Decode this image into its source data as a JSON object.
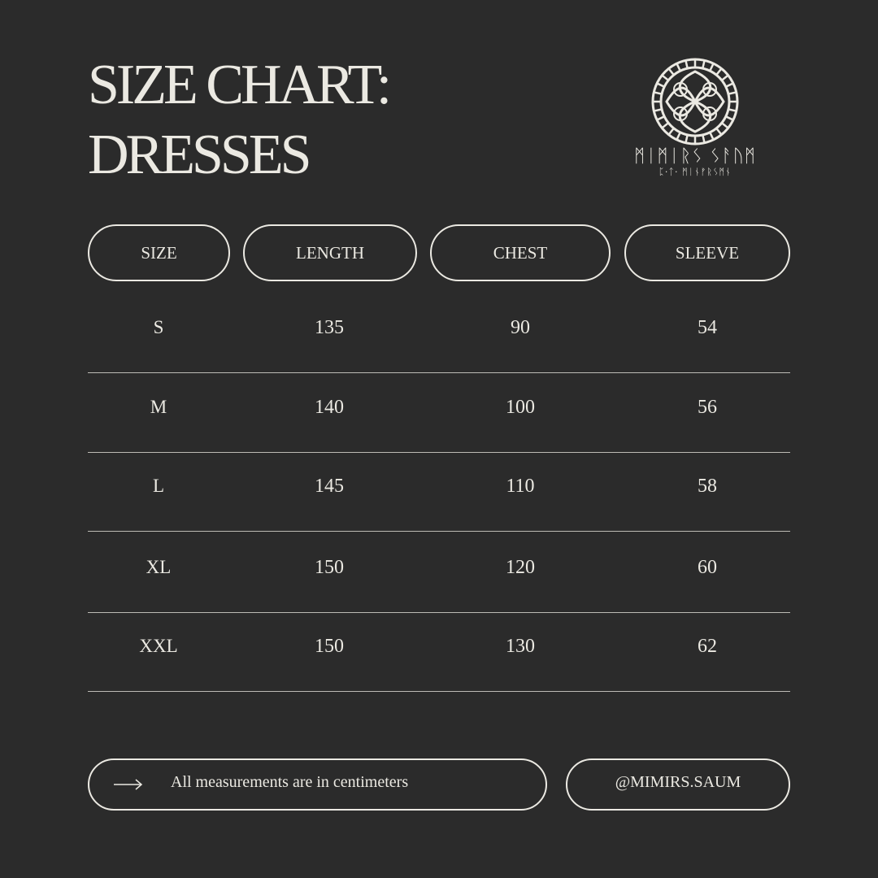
{
  "title": {
    "line1": "SIZE CHART:",
    "line2": "DRESSES"
  },
  "logo": {
    "name_runes": "ᛗᛁᛗᛁᚱᛊ ᛊᚨᚢᛗ",
    "sub_runes": "ᛈ·ᛏ· ᛗᛁᚾᚠᚱᛊᛗᚾ",
    "icon": "celtic-knot-circle"
  },
  "table": {
    "headers": [
      "SIZE",
      "LENGTH",
      "CHEST",
      "SLEEVE"
    ],
    "rows": [
      [
        "S",
        "135",
        "90",
        "54"
      ],
      [
        "M",
        "140",
        "100",
        "56"
      ],
      [
        "L",
        "145",
        "110",
        "58"
      ],
      [
        "XL",
        "150",
        "120",
        "60"
      ],
      [
        "XXL",
        "150",
        "130",
        "62"
      ]
    ]
  },
  "footer": {
    "note": "All measurements are in centimeters",
    "note_icon": "arrow-right-icon",
    "handle": "@MIMIRS.SAUM"
  },
  "colors": {
    "background": "#2b2b2b",
    "text": "#ebe9e2"
  }
}
